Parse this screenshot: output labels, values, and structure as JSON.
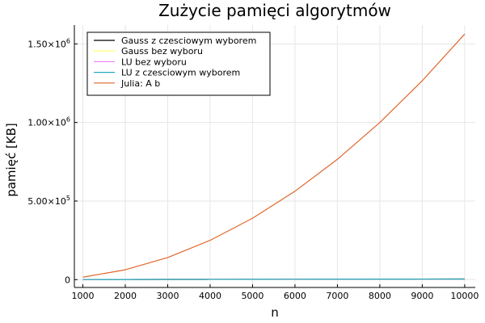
{
  "chart_data": {
    "type": "line",
    "title": "Zużycie pamięci algorytmów",
    "xlabel": "n",
    "ylabel": "pamięć [KB]",
    "xlim": [
      800,
      10250
    ],
    "ylim": [
      -50000,
      1620000
    ],
    "x_ticks": [
      {
        "value": 1000,
        "label": "1000"
      },
      {
        "value": 2000,
        "label": "2000"
      },
      {
        "value": 3000,
        "label": "3000"
      },
      {
        "value": 4000,
        "label": "4000"
      },
      {
        "value": 5000,
        "label": "5000"
      },
      {
        "value": 6000,
        "label": "6000"
      },
      {
        "value": 7000,
        "label": "7000"
      },
      {
        "value": 8000,
        "label": "8000"
      },
      {
        "value": 9000,
        "label": "9000"
      },
      {
        "value": 10000,
        "label": "10000"
      }
    ],
    "y_ticks": [
      {
        "value": 0,
        "mantissa": "0",
        "exponent": ""
      },
      {
        "value": 500000,
        "mantissa": "5.00×10",
        "exponent": "5"
      },
      {
        "value": 1000000,
        "mantissa": "1.00×10",
        "exponent": "6"
      },
      {
        "value": 1500000,
        "mantissa": "1.50×10",
        "exponent": "6"
      }
    ],
    "grid": true,
    "legend_position": "top-left",
    "x": [
      1000,
      2000,
      3000,
      4000,
      5000,
      6000,
      7000,
      8000,
      9000,
      10000
    ],
    "series": [
      {
        "name": "Gauss z czesciowym wyborem",
        "color": "#000000",
        "values": [
          400,
          800,
          1200,
          1600,
          2000,
          2400,
          2800,
          3200,
          3600,
          4000
        ]
      },
      {
        "name": "Gauss bez wyboru",
        "color": "#ffff66",
        "values": [
          400,
          800,
          1200,
          1600,
          2000,
          2400,
          2800,
          3200,
          3600,
          4000
        ]
      },
      {
        "name": "LU bez wyboru",
        "color": "#ee88ee",
        "values": [
          400,
          800,
          1200,
          1600,
          2000,
          2400,
          2800,
          3200,
          3600,
          4000
        ]
      },
      {
        "name": "LU z czesciowym wyborem",
        "color": "#22aabb",
        "values": [
          400,
          800,
          1200,
          1600,
          2000,
          2400,
          2800,
          3200,
          3600,
          4000
        ]
      },
      {
        "name": "Julia: A  b",
        "color": "#e0662a",
        "values": [
          15600,
          62500,
          140600,
          250000,
          390600,
          562500,
          765600,
          1000000,
          1265600,
          1562500
        ]
      }
    ]
  }
}
